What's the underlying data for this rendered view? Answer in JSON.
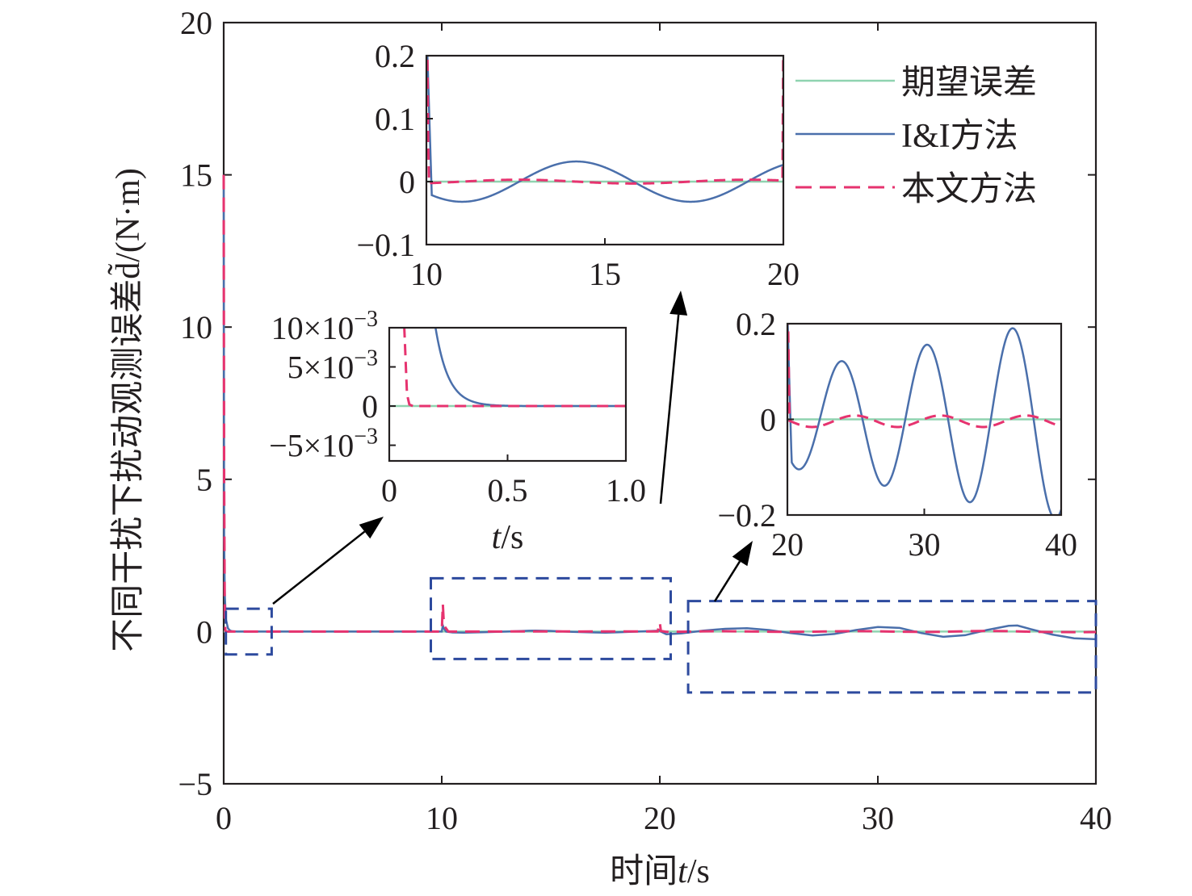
{
  "chart_data": {
    "type": "line",
    "ylabel": "不同干扰下扰动观测误差d̃/(N·m)",
    "xlabel_prefix": "时间",
    "xlabel_var": "t",
    "xlabel_unit": "/s",
    "xlim": [
      0,
      40
    ],
    "ylim": [
      -5,
      20
    ],
    "xticks": [
      "0",
      "10",
      "20",
      "30",
      "40"
    ],
    "yticks": [
      "−5",
      "0",
      "5",
      "10",
      "15",
      "20"
    ],
    "colors": {
      "desired": "#8fd3b0",
      "ii": "#4a6fab",
      "proposed": "#e6336f",
      "zoombox": "#2d4a9e",
      "arrow": "#000000"
    },
    "series": [
      {
        "name": "期望误差",
        "style": "solid",
        "x": [
          0,
          40
        ],
        "y": [
          0,
          0
        ]
      },
      {
        "name": "I&I方法",
        "style": "solid",
        "x": [
          0,
          0.02,
          0.05,
          0.1,
          0.2,
          0.3,
          0.4,
          0.6,
          1,
          5,
          10,
          10.05,
          10.1,
          10.2,
          10.5,
          11,
          12,
          13,
          14,
          14.3,
          15,
          16,
          17,
          17.5,
          18,
          19,
          20,
          20.05,
          20.3,
          21,
          22,
          23,
          24,
          25,
          26,
          27,
          28,
          29,
          30,
          31,
          32,
          33,
          34,
          35,
          36,
          36.4,
          37,
          38,
          39,
          40
        ],
        "y": [
          15,
          3,
          1.2,
          0.4,
          0.1,
          0.03,
          0.01,
          0.002,
          0,
          0,
          0,
          0.2,
          0.1,
          0.0,
          -0.03,
          -0.035,
          -0.02,
          0.0,
          0.028,
          0.03,
          0.02,
          -0.01,
          -0.03,
          -0.035,
          -0.025,
          0.0,
          0.03,
          0.0,
          -0.09,
          -0.06,
          0.03,
          0.09,
          0.11,
          0.05,
          -0.05,
          -0.13,
          -0.08,
          0.05,
          0.15,
          0.12,
          -0.05,
          -0.17,
          -0.12,
          0.05,
          0.19,
          0.2,
          0.08,
          -0.1,
          -0.22,
          -0.25
        ]
      },
      {
        "name": "本文方法",
        "style": "dashed",
        "x": [
          0,
          0.02,
          0.05,
          0.08,
          0.1,
          1,
          10,
          10.05,
          10.1,
          10.3,
          12,
          14,
          15,
          16,
          18,
          19.9,
          20,
          20.05,
          20.3,
          21,
          22,
          23,
          24,
          25,
          26,
          27,
          28,
          29,
          30,
          31,
          32,
          33,
          34,
          35,
          36,
          37,
          38,
          39,
          40
        ],
        "y": [
          15,
          5,
          0.5,
          0.01,
          0,
          0,
          0,
          0.9,
          0.2,
          0.0,
          0.0,
          0.005,
          0.004,
          0.002,
          0.003,
          0.005,
          0.3,
          0.02,
          -0.01,
          -0.005,
          0.008,
          0.01,
          0.005,
          -0.005,
          -0.01,
          -0.005,
          0.008,
          0.015,
          0.01,
          -0.005,
          -0.012,
          -0.008,
          0.01,
          0.02,
          0.015,
          -0.005,
          -0.015,
          -0.02,
          -0.015
        ]
      }
    ],
    "insets": [
      {
        "id": "inset-a",
        "xlim": [
          0,
          1
        ],
        "ylim": [
          -0.007,
          0.01
        ],
        "xticks": [
          "0",
          "0.5",
          "1.0"
        ],
        "yticks": [
          "−5×10",
          "0",
          "5×10",
          "10×10"
        ],
        "ytick_exp": "−3",
        "xlabel_var": "t",
        "xlabel_unit": "/s"
      },
      {
        "id": "inset-b",
        "xlim": [
          10,
          20
        ],
        "ylim": [
          -0.1,
          0.2
        ],
        "xticks": [
          "10",
          "15",
          "20"
        ],
        "yticks": [
          "−0.1",
          "0",
          "0.1",
          "0.2"
        ]
      },
      {
        "id": "inset-c",
        "xlim": [
          20,
          40
        ],
        "ylim": [
          -0.2,
          0.2
        ],
        "xticks": [
          "20",
          "30",
          "40"
        ],
        "yticks": [
          "−0.2",
          "0",
          "0.2"
        ]
      }
    ],
    "legend": [
      "期望误差",
      "I&I方法",
      "本文方法"
    ],
    "legend_position": "top-right"
  }
}
